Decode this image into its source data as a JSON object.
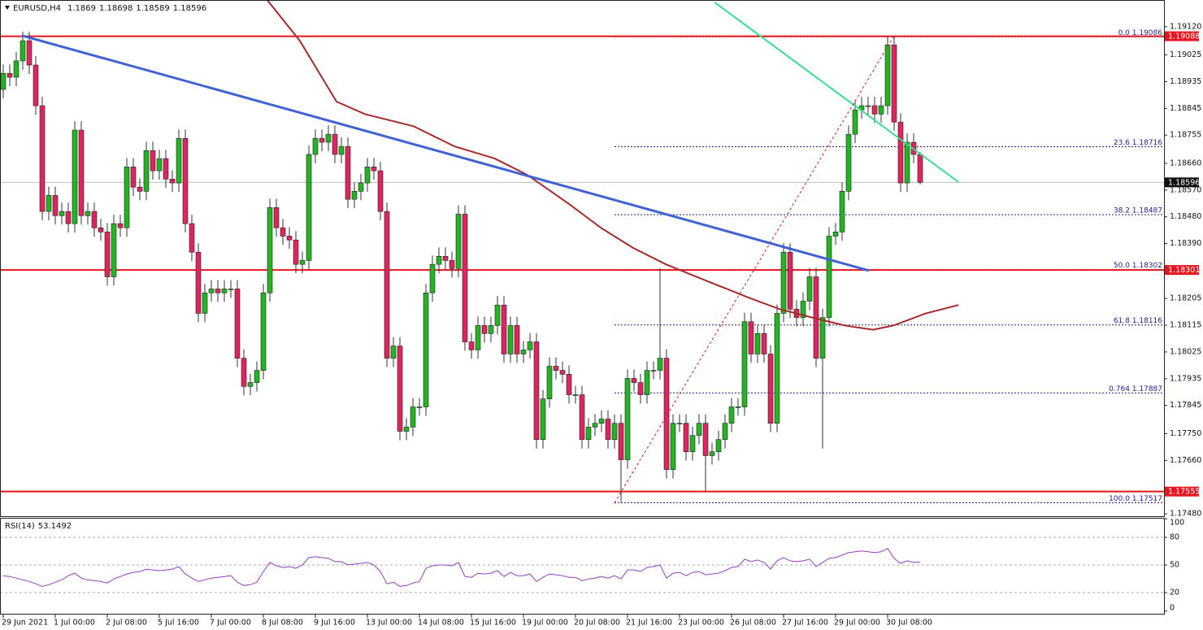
{
  "chart_data": {
    "type": "candlestick",
    "symbol": "EURUSD,H4",
    "categories": [
      "29 Jun 2021",
      null,
      null,
      null,
      null,
      null,
      null,
      null,
      "1 Jul 00:00",
      null,
      null,
      null,
      null,
      null,
      null,
      null,
      "2 Jul 08:00",
      null,
      null,
      null,
      null,
      null,
      null,
      null,
      "5 Jul 16:00",
      null,
      null,
      null,
      null,
      null,
      null,
      null,
      "7 Jul 00:00",
      null,
      null,
      null,
      null,
      null,
      null,
      null,
      "8 Jul 08:00",
      null,
      null,
      null,
      null,
      null,
      null,
      null,
      "9 Jul 16:00",
      null,
      null,
      null,
      null,
      null,
      null,
      null,
      "13 Jul 00:00",
      null,
      null,
      null,
      null,
      null,
      null,
      null,
      "14 Jul 08:00",
      null,
      null,
      null,
      null,
      null,
      null,
      null,
      "15 Jul 16:00",
      null,
      null,
      null,
      null,
      null,
      null,
      null,
      "19 Jul 00:00",
      null,
      null,
      null,
      null,
      null,
      null,
      null,
      "20 Jul 08:00",
      null,
      null,
      null,
      null,
      null,
      null,
      null,
      "21 Jul 16:00",
      null,
      null,
      null,
      null,
      null,
      null,
      null,
      "23 Jul 00:00",
      null,
      null,
      null,
      null,
      null,
      null,
      null,
      "26 Jul 08:00",
      null,
      null,
      null,
      null,
      null,
      null,
      null,
      "27 Jul 16:00",
      null,
      null,
      null,
      null,
      null,
      null,
      null,
      "29 Jul 00:00",
      null,
      null,
      null,
      null,
      null,
      null,
      null,
      "30 Jul 08:00",
      null,
      null,
      null,
      null,
      null
    ],
    "open": [
      1.18909,
      1.18963,
      1.1895,
      1.19005,
      1.19073,
      1.18991,
      1.18854,
      1.18498,
      1.18552,
      1.18484,
      1.18498,
      1.18457,
      1.18772,
      1.18484,
      1.18498,
      1.18443,
      1.18429,
      1.18278,
      1.18457,
      1.18443,
      1.18648,
      1.1858,
      1.18566,
      1.18703,
      1.18635,
      1.18676,
      1.18607,
      1.18594,
      1.18744,
      1.18457,
      1.18361,
      1.18155,
      1.18224,
      1.18237,
      1.18224,
      1.18237,
      1.18237,
      1.18004,
      1.17909,
      1.17922,
      1.17963,
      1.18224,
      1.18511,
      1.18443,
      1.18415,
      1.18402,
      1.1832,
      1.18333,
      1.1869,
      1.18744,
      1.18731,
      1.18758,
      1.1869,
      1.18717,
      1.18539,
      1.18566,
      1.18594,
      1.18648,
      1.18635,
      1.18498,
      1.18004,
      1.18045,
      1.17758,
      1.17772,
      1.1784,
      1.1784,
      1.18224,
      1.1832,
      1.18347,
      1.18333,
      1.18306,
      1.18489,
      1.18059,
      1.18032,
      1.18114,
      1.18087,
      1.18114,
      1.18183,
      1.18018,
      1.18114,
      1.18018,
      1.18032,
      1.18059,
      1.1773,
      1.17867,
      1.17977,
      1.17963,
      1.1795,
      1.17881,
      1.17881,
      1.1773,
      1.17772,
      1.17785,
      1.17799,
      1.1773,
      1.17785,
      1.17662,
      1.17936,
      1.17922,
      1.17881,
      1.17963,
      1.17963,
      1.18004,
      1.17629,
      1.17785,
      1.17785,
      1.17689,
      1.17744,
      1.17785,
      1.17676,
      1.17689,
      1.1773,
      1.17785,
      1.1784,
      1.1784,
      1.18127,
      1.18018,
      1.18087,
      1.18018,
      1.17785,
      1.18155,
      1.18361,
      1.18169,
      1.18141,
      1.18196,
      1.18278,
      1.18004,
      1.18141,
      1.18415,
      1.18429,
      1.18566,
      1.18758,
      1.1884,
      1.18854,
      1.18854,
      1.18826,
      1.18854,
      1.19059,
      1.18799,
      1.18594,
      1.18731,
      1.1869
    ],
    "high": [
      1.18993,
      1.18993,
      1.19035,
      1.19103,
      1.19103,
      1.19021,
      1.18884,
      1.18582,
      1.18582,
      1.18528,
      1.18528,
      1.18802,
      1.18802,
      1.18528,
      1.18528,
      1.18473,
      1.18459,
      1.18487,
      1.18487,
      1.18678,
      1.18678,
      1.1861,
      1.18733,
      1.18733,
      1.18706,
      1.18706,
      1.18637,
      1.18774,
      1.18774,
      1.18487,
      1.18391,
      1.18254,
      1.18267,
      1.18267,
      1.18267,
      1.18267,
      1.18267,
      1.18034,
      1.17952,
      1.17993,
      1.18254,
      1.18541,
      1.18541,
      1.18473,
      1.18445,
      1.18432,
      1.18363,
      1.1872,
      1.18774,
      1.18774,
      1.18788,
      1.18788,
      1.18747,
      1.18747,
      1.18596,
      1.18624,
      1.18678,
      1.18678,
      1.18665,
      1.18528,
      1.18075,
      1.18075,
      1.17802,
      1.1787,
      1.1787,
      1.18254,
      1.1835,
      1.18377,
      1.18377,
      1.18363,
      1.18519,
      1.18519,
      1.18089,
      1.18144,
      1.18144,
      1.18144,
      1.18213,
      1.18213,
      1.18144,
      1.18144,
      1.18062,
      1.18089,
      1.18089,
      1.17897,
      1.18007,
      1.18007,
      1.17993,
      1.1798,
      1.17911,
      1.17911,
      1.17802,
      1.17815,
      1.17829,
      1.17829,
      1.17815,
      1.17815,
      1.17966,
      1.17966,
      1.17952,
      1.17993,
      1.17993,
      1.18306,
      1.18034,
      1.17815,
      1.17815,
      1.17815,
      1.17774,
      1.17815,
      1.17815,
      1.17719,
      1.1776,
      1.17815,
      1.1787,
      1.1787,
      1.18157,
      1.18157,
      1.18117,
      1.18117,
      1.18048,
      1.18185,
      1.18391,
      1.18391,
      1.18199,
      1.18226,
      1.18308,
      1.18308,
      1.18171,
      1.18445,
      1.18459,
      1.18596,
      1.18788,
      1.1887,
      1.18884,
      1.18884,
      1.18884,
      1.18884,
      1.19088,
      1.19086,
      1.18829,
      1.18761,
      1.18761,
      1.18698
    ],
    "low": [
      1.18879,
      1.1892,
      1.1892,
      1.18975,
      1.18961,
      1.18824,
      1.18468,
      1.18468,
      1.18454,
      1.18454,
      1.18427,
      1.18427,
      1.18454,
      1.18454,
      1.18413,
      1.18399,
      1.18248,
      1.18248,
      1.18413,
      1.18413,
      1.1855,
      1.18536,
      1.18536,
      1.18605,
      1.18605,
      1.18577,
      1.18564,
      1.18564,
      1.18427,
      1.18331,
      1.18125,
      1.18125,
      1.18194,
      1.18194,
      1.18194,
      1.18207,
      1.17974,
      1.17879,
      1.17879,
      1.17892,
      1.17933,
      1.18194,
      1.18413,
      1.18385,
      1.18372,
      1.1829,
      1.1829,
      1.18303,
      1.1866,
      1.18701,
      1.18701,
      1.1866,
      1.1866,
      1.18509,
      1.18509,
      1.18536,
      1.18564,
      1.18605,
      1.18468,
      1.17974,
      1.17974,
      1.17728,
      1.17728,
      1.17742,
      1.1781,
      1.1781,
      1.18194,
      1.1829,
      1.18303,
      1.18276,
      1.18276,
      1.18029,
      1.18002,
      1.18002,
      1.18057,
      1.18057,
      1.18084,
      1.17988,
      1.17988,
      1.17988,
      1.17988,
      1.18002,
      1.177,
      1.177,
      1.17837,
      1.17933,
      1.1792,
      1.17851,
      1.17851,
      1.177,
      1.177,
      1.17742,
      1.17755,
      1.177,
      1.177,
      1.17517,
      1.17632,
      1.17892,
      1.17851,
      1.17851,
      1.17933,
      1.17933,
      1.17599,
      1.17599,
      1.17755,
      1.17659,
      1.17659,
      1.17714,
      1.17555,
      1.17646,
      1.17659,
      1.177,
      1.17755,
      1.1781,
      1.1781,
      1.17988,
      1.17988,
      1.17988,
      1.17755,
      1.17755,
      1.18125,
      1.18139,
      1.18111,
      1.18111,
      1.18166,
      1.17974,
      1.177,
      1.18111,
      1.18385,
      1.18399,
      1.18536,
      1.18728,
      1.1881,
      1.18824,
      1.18796,
      1.18796,
      1.18824,
      1.18769,
      1.18564,
      1.18564,
      1.1866,
      1.18589
    ],
    "close": [
      1.18963,
      1.1895,
      1.19005,
      1.19073,
      1.18991,
      1.18854,
      1.18498,
      1.18552,
      1.18484,
      1.18498,
      1.18457,
      1.18772,
      1.18484,
      1.18498,
      1.18443,
      1.18429,
      1.18278,
      1.18457,
      1.18443,
      1.18648,
      1.1858,
      1.18566,
      1.18703,
      1.18635,
      1.18676,
      1.18607,
      1.18594,
      1.18744,
      1.18457,
      1.18361,
      1.18155,
      1.18224,
      1.18237,
      1.18224,
      1.18237,
      1.18237,
      1.18004,
      1.17909,
      1.17922,
      1.17963,
      1.18224,
      1.18511,
      1.18443,
      1.18415,
      1.18402,
      1.1832,
      1.18333,
      1.1869,
      1.18744,
      1.18731,
      1.18758,
      1.1869,
      1.18717,
      1.18539,
      1.18566,
      1.18594,
      1.18648,
      1.18635,
      1.18498,
      1.18004,
      1.18045,
      1.17758,
      1.17772,
      1.1784,
      1.1784,
      1.18224,
      1.1832,
      1.18347,
      1.18333,
      1.18306,
      1.18489,
      1.18059,
      1.18032,
      1.18114,
      1.18087,
      1.18114,
      1.18183,
      1.18018,
      1.18114,
      1.18018,
      1.18032,
      1.18059,
      1.1773,
      1.17867,
      1.17977,
      1.17963,
      1.1795,
      1.17881,
      1.17881,
      1.1773,
      1.17772,
      1.17785,
      1.17799,
      1.1773,
      1.17785,
      1.17662,
      1.17936,
      1.17922,
      1.17881,
      1.17963,
      1.17963,
      1.18004,
      1.17629,
      1.17785,
      1.17785,
      1.17689,
      1.17744,
      1.17785,
      1.17676,
      1.17689,
      1.1773,
      1.17785,
      1.1784,
      1.1784,
      1.18127,
      1.18018,
      1.18087,
      1.18018,
      1.17785,
      1.18155,
      1.18361,
      1.18169,
      1.18141,
      1.18196,
      1.18278,
      1.18004,
      1.18141,
      1.18415,
      1.18429,
      1.18566,
      1.18758,
      1.1884,
      1.18854,
      1.18854,
      1.18826,
      1.18854,
      1.19059,
      1.18799,
      1.18594,
      1.18731,
      1.1869,
      1.18596
    ],
    "up_color": "#22b422",
    "down_color": "#e0245e",
    "wick_color": "#333333",
    "ylim": [
      1.17472,
      1.1921
    ],
    "yticks": [
      {
        "value": 1.1912,
        "label": "1.19120"
      },
      1.19025,
      1.18935,
      1.18845,
      1.18755,
      {
        "value": 1.1866,
        "label": "1.18660"
      },
      {
        "value": 1.1857,
        "label": "1.18570"
      },
      {
        "value": 1.1848,
        "label": "1.18480"
      },
      {
        "value": 1.1839,
        "label": "1.18390"
      },
      1.18205,
      1.18115,
      1.18025,
      1.17935,
      1.17845,
      {
        "value": 1.1775,
        "label": "1.17750"
      },
      {
        "value": 1.1766,
        "label": "1.17660"
      },
      {
        "value": 1.1748,
        "label": "1.17480"
      }
    ],
    "hlines": [
      1.19088,
      1.18301,
      1.17555
    ],
    "hline_color": "#e8141e",
    "current_price": 1.18596,
    "fib_levels": [
      {
        "value": 1.19086,
        "label": "0.0 1.19086"
      },
      {
        "value": 1.18716,
        "label": "23.6 1.18716"
      },
      {
        "value": 1.18487,
        "label": "38.2 1.18487"
      },
      {
        "value": 1.18302,
        "label": "50.0 1.18302"
      },
      {
        "value": 1.18116,
        "label": "61.8 1.18116"
      },
      {
        "value": 1.17887,
        "label": "0.764 1.17887"
      },
      {
        "value": 1.17517,
        "label": "100.0 1.17517"
      }
    ],
    "fib_color": "#1e1e9a",
    "lines": [
      {
        "color": "#a82a2a",
        "width": 2,
        "x": [
          40.6,
          45.6,
          51.25,
          55.6,
          63.1,
          69.4,
          75.6,
          80.6,
          86.9,
          91.9,
          96.9,
          101.9,
          108.1,
          114.4,
          119.4,
          124.4,
          129.4,
          133.75,
          136.9,
          141.9,
          146.9
        ],
        "values": [
          1.1921,
          1.19073,
          1.18868,
          1.18826,
          1.18785,
          1.18717,
          1.18676,
          1.18621,
          1.18525,
          1.18443,
          1.18375,
          1.1832,
          1.18265,
          1.1821,
          1.18169,
          1.18141,
          1.18114,
          1.181,
          1.18114,
          1.18155,
          1.18183
        ]
      },
      {
        "color": "#3f63d3",
        "width": 3,
        "x": [
          2.9,
          133.1
        ],
        "values": [
          1.1909,
          1.18299
        ]
      },
      {
        "color": "#35e08c",
        "width": 2,
        "x": [
          109.4,
          146.9
        ],
        "values": [
          1.19202,
          1.18597
        ]
      },
      {
        "color": "#e8141e",
        "width": 1,
        "dash": true,
        "x": [
          94,
          136.9
        ],
        "values": [
          1.17517,
          1.19086
        ]
      }
    ],
    "rsi": {
      "title": "RSI(14)",
      "color": "#9a3cc8",
      "ylim": [
        0,
        100
      ],
      "yticks": [
        100,
        80,
        50,
        20,
        0
      ],
      "levels": [
        80,
        50,
        20
      ],
      "values": [
        38.4,
        37.5,
        35.7,
        33.9,
        32.1,
        29.5,
        26.8,
        28.6,
        31.3,
        33.9,
        38.4,
        41.1,
        35.7,
        33.9,
        33.0,
        32.1,
        30.4,
        34.8,
        37.5,
        40.2,
        42.0,
        42.9,
        45.5,
        44.6,
        43.8,
        44.6,
        45.5,
        48.2,
        40.2,
        35.7,
        32.1,
        33.9,
        35.7,
        36.6,
        37.5,
        38.4,
        31.3,
        27.7,
        28.6,
        31.3,
        42.9,
        52.7,
        49.1,
        47.3,
        48.2,
        46.4,
        50.0,
        58.0,
        58.9,
        58.0,
        57.1,
        53.6,
        53.6,
        50.0,
        50.9,
        51.8,
        52.7,
        50.0,
        42.9,
        29.5,
        31.3,
        26.8,
        27.7,
        30.4,
        32.1,
        46.4,
        49.1,
        50.0,
        50.0,
        49.1,
        52.7,
        37.5,
        36.6,
        41.1,
        40.2,
        41.1,
        43.8,
        37.5,
        42.0,
        38.4,
        38.4,
        40.2,
        32.1,
        36.6,
        40.2,
        39.3,
        38.4,
        36.6,
        36.6,
        33.0,
        34.8,
        35.7,
        37.5,
        35.7,
        38.4,
        34.8,
        44.6,
        44.6,
        42.9,
        47.3,
        48.2,
        50.0,
        35.7,
        41.1,
        42.0,
        38.4,
        42.0,
        42.9,
        39.3,
        40.2,
        41.1,
        43.8,
        47.3,
        48.2,
        56.3,
        53.6,
        55.4,
        52.7,
        45.5,
        54.5,
        58.0,
        54.5,
        53.6,
        54.5,
        56.3,
        48.2,
        52.7,
        57.1,
        58.0,
        60.7,
        63.4,
        64.3,
        65.2,
        64.3,
        63.4,
        64.3,
        67.9,
        57.1,
        51.8,
        54.5,
        52.7,
        53.1492
      ]
    }
  }
}
